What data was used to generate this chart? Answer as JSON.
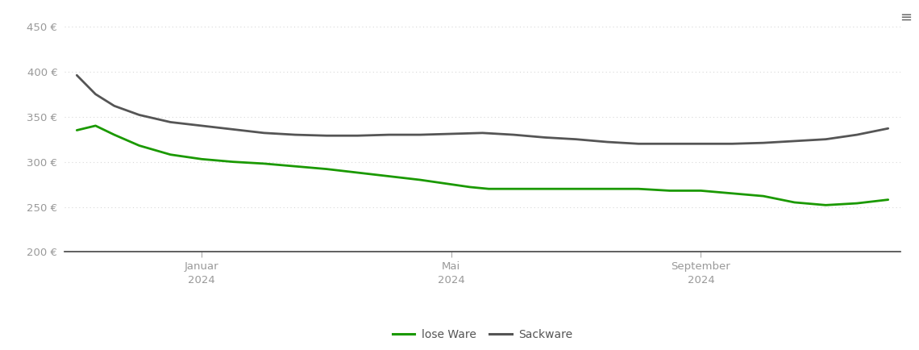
{
  "ylim": [
    200,
    460
  ],
  "yticks": [
    200,
    250,
    300,
    350,
    400,
    450
  ],
  "ytick_labels": [
    "200 €",
    "250 €",
    "300 €",
    "350 €",
    "400 €",
    "450 €"
  ],
  "xtick_positions": [
    2,
    6,
    10
  ],
  "xtick_labels": [
    "Januar\n2024",
    "Mai\n2024",
    "September\n2024"
  ],
  "background_color": "#ffffff",
  "grid_color": "#d8d8d8",
  "lose_ware_color": "#1a9900",
  "sackware_color": "#555555",
  "legend_labels": [
    "lose Ware",
    "Sackware"
  ],
  "x_lw": [
    0,
    0.3,
    0.6,
    1.0,
    1.5,
    2.0,
    2.5,
    3.0,
    3.5,
    4.0,
    4.5,
    5.0,
    5.5,
    6.0,
    6.3,
    6.6,
    7.0,
    7.5,
    8.0,
    8.5,
    9.0,
    9.5,
    10.0,
    10.5,
    11.0,
    11.5,
    12.0,
    12.5,
    13.0
  ],
  "y_lw": [
    335,
    340,
    330,
    318,
    308,
    303,
    300,
    298,
    295,
    292,
    288,
    284,
    280,
    275,
    272,
    270,
    270,
    270,
    270,
    270,
    270,
    268,
    268,
    265,
    262,
    255,
    252,
    254,
    258
  ],
  "x_sw": [
    0,
    0.3,
    0.6,
    1.0,
    1.5,
    2.0,
    2.5,
    3.0,
    3.5,
    4.0,
    4.5,
    5.0,
    5.5,
    6.0,
    6.5,
    7.0,
    7.5,
    8.0,
    8.5,
    9.0,
    9.5,
    10.0,
    10.5,
    11.0,
    11.5,
    12.0,
    12.5,
    13.0
  ],
  "y_sw": [
    396,
    375,
    362,
    352,
    344,
    340,
    336,
    332,
    330,
    329,
    329,
    330,
    330,
    331,
    332,
    330,
    327,
    325,
    322,
    320,
    320,
    320,
    320,
    321,
    323,
    325,
    330,
    337
  ]
}
